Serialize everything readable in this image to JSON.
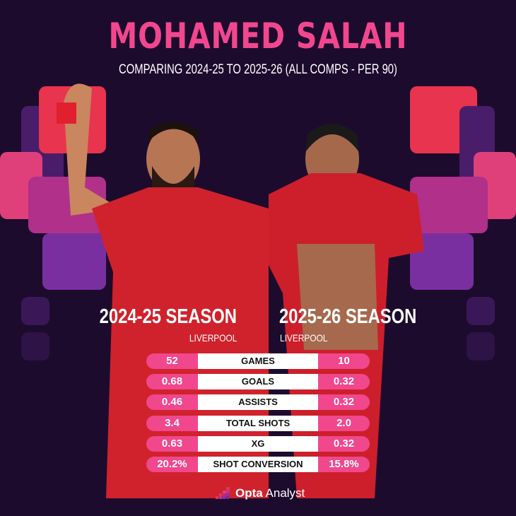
{
  "title": "MOHAMED SALAH",
  "subtitle": "COMPARING 2024-25 TO 2025-26 (ALL COMPS - PER 90)",
  "colors": {
    "background": "#1d0b2e",
    "accent": "#f0478d",
    "purple": "#7a2fa0"
  },
  "left": {
    "season": "2024-25 SEASON",
    "club": "LIVERPOOL"
  },
  "right": {
    "season": "2025-26 SEASON",
    "club": "LIVERPOOL"
  },
  "stats": [
    {
      "label": "GAMES",
      "s2024_25": "52",
      "s2025_26": "10"
    },
    {
      "label": "GOALS",
      "s2024_25": "0.68",
      "s2025_26": "0.32"
    },
    {
      "label": "ASSISTS",
      "s2024_25": "0.46",
      "s2025_26": "0.32"
    },
    {
      "label": "TOTAL SHOTS",
      "s2024_25": "3.4",
      "s2025_26": "2.0"
    },
    {
      "label": "XG",
      "s2024_25": "0.63",
      "s2025_26": "0.32"
    },
    {
      "label": "SHOT CONVERSION",
      "s2024_25": "20.2%",
      "s2025_26": "15.8%"
    }
  ],
  "logo": {
    "bold": "Opta",
    "rest": " Analyst"
  }
}
